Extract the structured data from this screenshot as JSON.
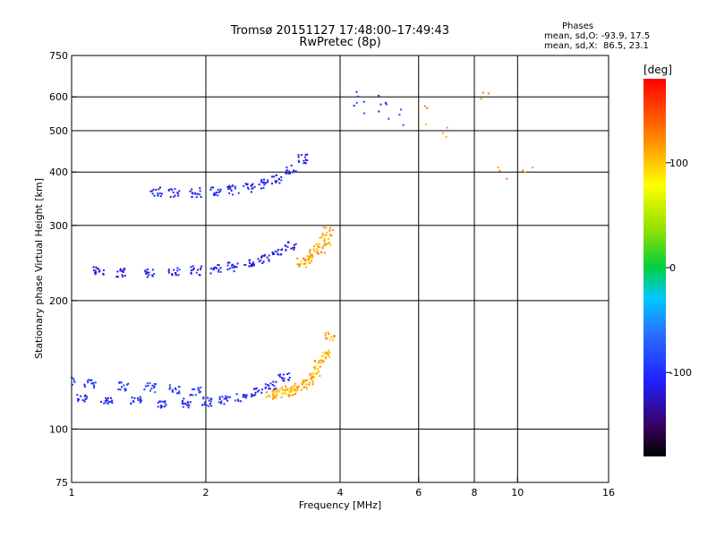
{
  "header": {
    "title_line1": "Tromsø 20151127 17:48:00–17:49:43",
    "title_line2": "RwPretec (8p)",
    "phase_heading": "Phases",
    "phase_o": "mean, sd,O: -93.9, 17.5",
    "phase_x": "mean, sd,X:  86.5, 23.1"
  },
  "colorbar": {
    "unit_label": "[deg]",
    "ticks": [
      "100",
      "0",
      "-100"
    ],
    "tick_values": [
      100,
      0,
      -100
    ],
    "range": [
      -180,
      180
    ]
  },
  "chart_data": {
    "type": "scatter",
    "title": "Tromsø 20151127 17:48:00–17:49:43",
    "subtitle": "RwPretec (8p)",
    "xlabel": "Frequency [MHz]",
    "ylabel": "Stationary phase Virtual Height [km]",
    "xscale": "log",
    "yscale": "log",
    "xlim": [
      1,
      16
    ],
    "ylim": [
      75,
      750
    ],
    "x_ticks": [
      1,
      2,
      4,
      6,
      8,
      10,
      16
    ],
    "x_tick_labels": [
      "1",
      "2",
      "4",
      "6",
      "8",
      "10",
      "16"
    ],
    "y_ticks": [
      75,
      100,
      200,
      300,
      400,
      500,
      600,
      750
    ],
    "y_tick_labels": [
      "75",
      "100",
      "200",
      "300",
      "400",
      "500",
      "600",
      "750"
    ],
    "grid": true,
    "color_by": "phase [deg]",
    "traces": [
      {
        "x": [
          1.05,
          1.2,
          1.4,
          1.6,
          1.8,
          2.0,
          2.2,
          2.4,
          2.6,
          2.8,
          3.0
        ],
        "y": [
          118,
          117,
          116,
          115,
          115,
          116,
          117,
          119,
          122,
          127,
          132
        ],
        "phase": -105
      },
      {
        "x": [
          1.0,
          1.1,
          1.3,
          1.5,
          1.7,
          1.9
        ],
        "y": [
          130,
          128,
          126,
          125,
          124,
          123
        ],
        "phase": -95
      },
      {
        "x": [
          1.15,
          1.3,
          1.5,
          1.7,
          1.9,
          2.1,
          2.3,
          2.5,
          2.7,
          2.9,
          3.1
        ],
        "y": [
          235,
          233,
          232,
          233,
          235,
          237,
          240,
          244,
          250,
          258,
          268
        ],
        "phase": -110
      },
      {
        "x": [
          1.55,
          1.7,
          1.9,
          2.1,
          2.3,
          2.5,
          2.7,
          2.9,
          3.1,
          3.3
        ],
        "y": [
          360,
          358,
          358,
          360,
          363,
          368,
          375,
          385,
          405,
          430
        ],
        "phase": -108
      },
      {
        "x": [
          2.8,
          2.9,
          3.0,
          3.1,
          3.2,
          3.3,
          3.4,
          3.5,
          3.6,
          3.7,
          3.8
        ],
        "y": [
          120,
          121,
          122,
          123,
          125,
          127,
          130,
          135,
          142,
          150,
          165
        ],
        "phase": 110
      },
      {
        "x": [
          3.3,
          3.4,
          3.5,
          3.6,
          3.7,
          3.75
        ],
        "y": [
          245,
          250,
          258,
          265,
          275,
          290
        ],
        "phase": 112
      },
      {
        "x": [
          4.3,
          4.5,
          4.8,
          5.2,
          5.6
        ],
        "y": [
          590,
          580,
          570,
          550,
          530
        ],
        "phase": -100
      },
      {
        "x": [
          6.3,
          6.8,
          8.5,
          9.2,
          10.5
        ],
        "y": [
          540,
          480,
          590,
          400,
          410
        ],
        "phase": 120
      }
    ]
  }
}
